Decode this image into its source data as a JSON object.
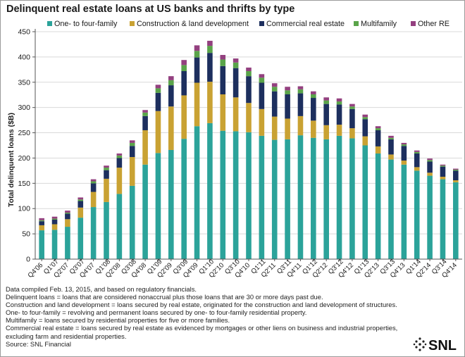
{
  "title": "Delinquent real estate loans at US banks and thrifts by type",
  "notes": [
    "Data compiled Feb. 13, 2015, and based on regulatory financials.",
    "Delinquent loans = loans that are considered nonaccrual plus those loans that are 30 or more days past due.",
    "Construction and land development = loans secured by real estate, originated for the construction and land development of structures.",
    "One- to four-family = revolving and permanent loans secured by one- to four-family residential property.",
    "Multifamily = loans secured by residential properties for five or more families.",
    "Commercial real estate = loans secured by real estate as evidenced by mortgages or other liens on business and industrial properties, excluding farm and residential properties.",
    "Source: SNL Financial"
  ],
  "logo": {
    "text": "SNL"
  },
  "colors": {
    "one_to_four": "#2ba39a",
    "construction": "#c9a233",
    "commercial": "#1d2f5e",
    "multifamily": "#5aa44a",
    "other": "#93407f"
  },
  "chart_data": {
    "type": "bar",
    "stacked": true,
    "ylabel": "Total delinquent loans ($B)",
    "xlabel": "",
    "ylim": [
      0,
      450
    ],
    "yticks": [
      0,
      50,
      100,
      150,
      200,
      250,
      300,
      350,
      400,
      450
    ],
    "grid": true,
    "legend_position": "top",
    "categories": [
      "Q4'06",
      "Q1'07",
      "Q2'07",
      "Q3'07",
      "Q4'07",
      "Q1'08",
      "Q2'08",
      "Q3'08",
      "Q4'08",
      "Q1'09",
      "Q2'09",
      "Q3'09",
      "Q4'09",
      "Q1'10",
      "Q2'10",
      "Q3'10",
      "Q4'10",
      "Q1'11",
      "Q2'11",
      "Q3'11",
      "Q4'11",
      "Q1'12",
      "Q2'12",
      "Q3'12",
      "Q4'12",
      "Q1'13",
      "Q2'13",
      "Q3'13",
      "Q4'13",
      "Q1'14",
      "Q2'14",
      "Q3'14",
      "Q4'14"
    ],
    "tick_labels": [
      "Q4'06",
      "",
      "Q2'07",
      "",
      "Q4'07",
      "",
      "Q2'08",
      "",
      "Q4'08",
      "",
      "Q2'09",
      "",
      "Q4'09",
      "",
      "Q2'10",
      "",
      "Q4'10",
      "",
      "Q2'11",
      "",
      "Q4'11",
      "",
      "Q2'12",
      "",
      "Q4'12",
      "",
      "Q2'13",
      "",
      "Q4'13",
      "",
      "Q2'14",
      "",
      "Q4'14"
    ],
    "tick_labels_upper": [
      "",
      "Q1'07",
      "",
      "Q3'07",
      "",
      "Q1'08",
      "",
      "Q3'08",
      "",
      "Q1'09",
      "",
      "Q3'09",
      "",
      "Q1'10",
      "",
      "Q3'10",
      "",
      "Q1'11",
      "",
      "Q3'11",
      "",
      "Q1'12",
      "",
      "Q3'12",
      "",
      "Q1'13",
      "",
      "Q3'13",
      "",
      "Q1'14",
      "",
      "Q3'14",
      ""
    ],
    "series": [
      {
        "name": "One- to four-family",
        "color_key": "one_to_four",
        "values": [
          57,
          58,
          64,
          82,
          103,
          113,
          129,
          145,
          187,
          210,
          216,
          238,
          263,
          269,
          254,
          253,
          251,
          244,
          236,
          237,
          245,
          240,
          237,
          244,
          239,
          225,
          209,
          197,
          187,
          175,
          165,
          158,
          152
        ]
      },
      {
        "name": "Construction & land development",
        "color_key": "construction",
        "values": [
          10,
          11,
          15,
          20,
          30,
          46,
          52,
          57,
          68,
          83,
          86,
          86,
          86,
          82,
          72,
          67,
          58,
          53,
          46,
          41,
          38,
          34,
          28,
          22,
          20,
          18,
          14,
          10,
          8,
          7,
          6,
          5,
          4
        ]
      },
      {
        "name": "Commercial real estate",
        "color_key": "commercial",
        "values": [
          8,
          9,
          11,
          13,
          17,
          17,
          19,
          22,
          28,
          36,
          42,
          48,
          50,
          57,
          56,
          58,
          53,
          52,
          50,
          48,
          45,
          45,
          42,
          40,
          38,
          34,
          32,
          30,
          29,
          27,
          22,
          20,
          19
        ]
      },
      {
        "name": "Multifamily",
        "color_key": "multifamily",
        "values": [
          2,
          2,
          2,
          3,
          4,
          5,
          5,
          6,
          7,
          9,
          10,
          12,
          13,
          14,
          13,
          11,
          10,
          10,
          9,
          8,
          8,
          7,
          7,
          6,
          5,
          4,
          4,
          3,
          3,
          3,
          3,
          2,
          2
        ]
      },
      {
        "name": "Other RE",
        "color_key": "other",
        "values": [
          4,
          4,
          4,
          4,
          4,
          4,
          4,
          5,
          5,
          7,
          8,
          10,
          11,
          10,
          9,
          8,
          7,
          7,
          7,
          7,
          6,
          6,
          6,
          6,
          5,
          5,
          4,
          4,
          3,
          3,
          3,
          2,
          2
        ]
      }
    ]
  }
}
